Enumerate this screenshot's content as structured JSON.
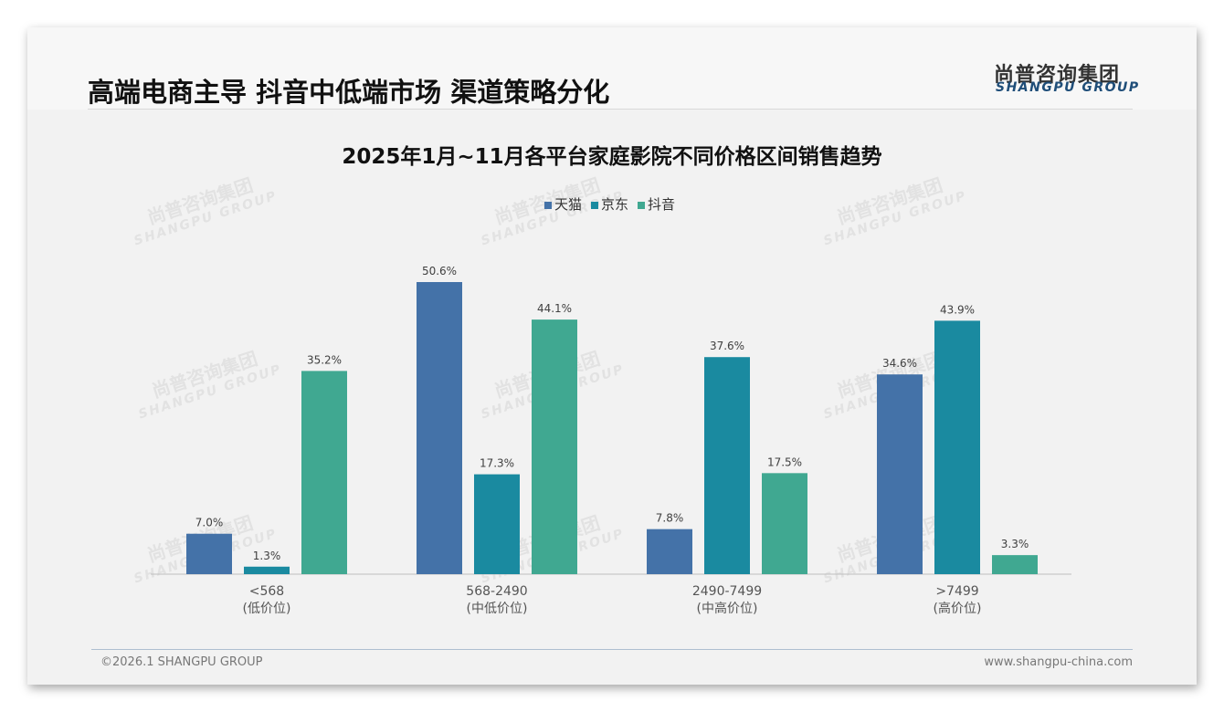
{
  "header": {
    "title": "高端电商主导 抖音中低端市场 渠道策略分化",
    "logo_cn": "尚普咨询集团",
    "logo_en": "SHANGPU GROUP"
  },
  "footer": {
    "copyright": "©2026.1 SHANGPU GROUP",
    "website": "www.shangpu-china.com"
  },
  "watermark": {
    "cn": "尚普咨询集团",
    "en": "SHANGPU GROUP"
  },
  "chart_data": {
    "type": "bar",
    "title": "2025年1月~11月各平台家庭影院不同价格区间销售趋势",
    "categories": [
      "<568",
      "568-2490",
      "2490-7499",
      ">7499"
    ],
    "category_sublabels": [
      "(低价位)",
      "(中低价位)",
      "(中高价位)",
      "(高价位)"
    ],
    "series": [
      {
        "name": "天猫",
        "color": "#4472a8",
        "values": [
          7.0,
          50.6,
          7.8,
          34.6
        ]
      },
      {
        "name": "京东",
        "color": "#1a8aa0",
        "values": [
          1.3,
          17.3,
          37.6,
          43.9
        ]
      },
      {
        "name": "抖音",
        "color": "#40a891",
        "values": [
          35.2,
          44.1,
          17.5,
          3.3
        ]
      }
    ],
    "unit": "%",
    "legend": "top",
    "grid": false,
    "ylim": [
      0,
      55
    ]
  }
}
